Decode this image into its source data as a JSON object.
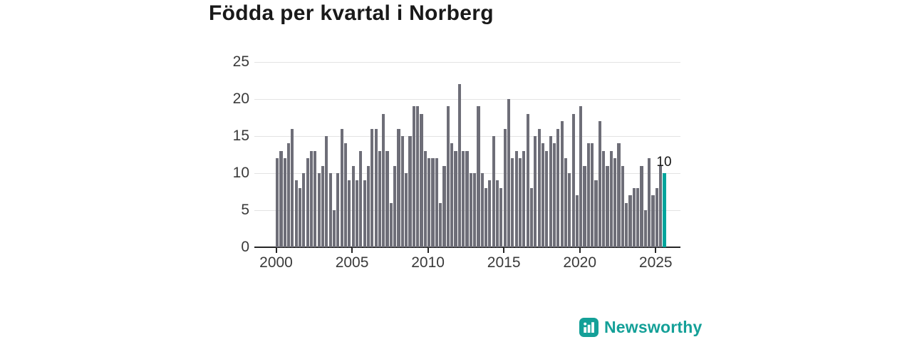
{
  "header": {
    "title": "Födda per kvartal i Norberg"
  },
  "chart_data": {
    "type": "bar",
    "title": "Födda per kvartal i Norberg",
    "xlabel": "",
    "ylabel": "",
    "frequency": "quarterly",
    "start_period": "2000 Q1",
    "end_period": "2025 Q3",
    "ylim": [
      0,
      25
    ],
    "y_ticks": [
      0,
      5,
      10,
      15,
      20,
      25
    ],
    "y_tick_labels": [
      "0",
      "5",
      "10",
      "15",
      "20",
      "25"
    ],
    "x_ticks": [
      2000,
      2005,
      2010,
      2015,
      2020,
      2025
    ],
    "x_tick_labels": [
      "2000",
      "2005",
      "2010",
      "2015",
      "2020",
      "2025"
    ],
    "grid": "horizontal",
    "legend": "none",
    "bar_color": "#6e6e78",
    "series": [
      {
        "name": "Födda",
        "by_year": [
          {
            "year": 2000,
            "values": [
              12,
              13,
              12,
              14
            ]
          },
          {
            "year": 2001,
            "values": [
              16,
              9,
              8,
              10
            ]
          },
          {
            "year": 2002,
            "values": [
              12,
              13,
              13,
              10
            ]
          },
          {
            "year": 2003,
            "values": [
              11,
              15,
              10,
              5
            ]
          },
          {
            "year": 2004,
            "values": [
              10,
              16,
              14,
              9
            ]
          },
          {
            "year": 2005,
            "values": [
              11,
              9,
              13,
              9
            ]
          },
          {
            "year": 2006,
            "values": [
              11,
              16,
              16,
              13
            ]
          },
          {
            "year": 2007,
            "values": [
              18,
              13,
              6,
              11
            ]
          },
          {
            "year": 2008,
            "values": [
              16,
              15,
              10,
              15
            ]
          },
          {
            "year": 2009,
            "values": [
              19,
              19,
              18,
              13
            ]
          },
          {
            "year": 2010,
            "values": [
              12,
              12,
              12,
              6
            ]
          },
          {
            "year": 2011,
            "values": [
              11,
              19,
              14,
              13
            ]
          },
          {
            "year": 2012,
            "values": [
              22,
              13,
              13,
              10
            ]
          },
          {
            "year": 2013,
            "values": [
              10,
              19,
              10,
              8
            ]
          },
          {
            "year": 2014,
            "values": [
              9,
              15,
              9,
              8
            ]
          },
          {
            "year": 2015,
            "values": [
              16,
              20,
              12,
              13
            ]
          },
          {
            "year": 2016,
            "values": [
              12,
              13,
              18,
              8
            ]
          },
          {
            "year": 2017,
            "values": [
              15,
              16,
              14,
              13
            ]
          },
          {
            "year": 2018,
            "values": [
              15,
              14,
              16,
              17
            ]
          },
          {
            "year": 2019,
            "values": [
              12,
              10,
              18,
              7
            ]
          },
          {
            "year": 2020,
            "values": [
              19,
              11,
              14,
              14
            ]
          },
          {
            "year": 2021,
            "values": [
              9,
              17,
              13,
              11
            ]
          },
          {
            "year": 2022,
            "values": [
              13,
              12,
              14,
              11
            ]
          },
          {
            "year": 2023,
            "values": [
              6,
              7,
              8,
              8
            ]
          },
          {
            "year": 2024,
            "values": [
              11,
              5,
              12,
              7
            ]
          },
          {
            "year": 2025,
            "values": [
              8,
              11,
              10
            ]
          }
        ]
      }
    ],
    "highlight_last": {
      "label": "10",
      "value": 10,
      "color": "#00a59c"
    }
  },
  "branding": {
    "label": "Newsworthy",
    "color": "#14a098",
    "icon": "newsworthy-bars-icon"
  }
}
